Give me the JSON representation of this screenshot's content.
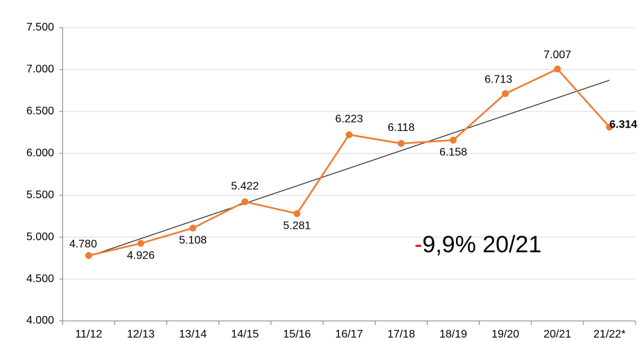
{
  "chart_data": {
    "type": "line",
    "categories": [
      "11/12",
      "12/13",
      "13/14",
      "14/15",
      "15/16",
      "16/17",
      "17/18",
      "18/19",
      "19/20",
      "20/21",
      "21/22*"
    ],
    "series": [
      {
        "color": "#ed7d31",
        "values": [
          4780,
          4926,
          5108,
          5422,
          5281,
          6223,
          6118,
          6158,
          6713,
          7007,
          6314
        ],
        "value_labels": [
          "4.780",
          "4.926",
          "5.108",
          "5.422",
          "5.281",
          "6.223",
          "6.118",
          "6.158",
          "6.713",
          "7.007",
          "6.314"
        ]
      }
    ],
    "ylim": [
      4000,
      7500
    ],
    "yticks": [
      {
        "value": 4000,
        "label": "4.000"
      },
      {
        "value": 4500,
        "label": "4.500"
      },
      {
        "value": 5000,
        "label": "5.000"
      },
      {
        "value": 5500,
        "label": "5.500"
      },
      {
        "value": 6000,
        "label": "6.000"
      },
      {
        "value": 6500,
        "label": "6.500"
      },
      {
        "value": 7000,
        "label": "7.000"
      },
      {
        "value": 7500,
        "label": "7.500"
      }
    ],
    "grid": true,
    "trendline": true,
    "trendline_color": "#333333",
    "annotation": {
      "sign": "-",
      "sign_color": "#ff0000",
      "text": "9,9% 20/21"
    }
  }
}
